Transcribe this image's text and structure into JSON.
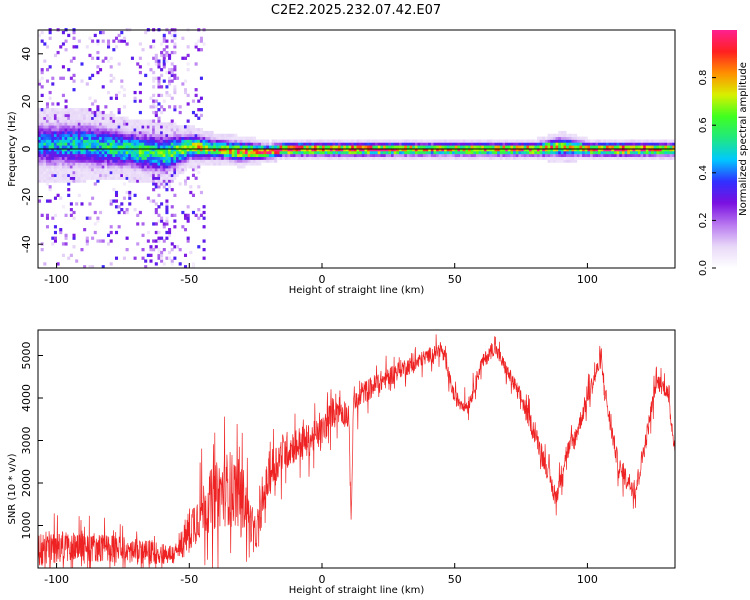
{
  "title": "C2E2.2025.232.07.42.E07",
  "colors": {
    "snr_line": "#ee2222",
    "center_line": "#000000",
    "axis": "#000000",
    "colormap": [
      "#ffffff",
      "#e8d8f8",
      "#b878f0",
      "#7a10e0",
      "#3030ff",
      "#00c8ff",
      "#20e880",
      "#40ff20",
      "#d8f000",
      "#ff9000",
      "#ff2020",
      "#ff2090"
    ]
  },
  "chart_data": [
    {
      "type": "heatmap",
      "name": "spectrogram",
      "xlabel": "Height of straight line (km)",
      "ylabel": "Frequency (Hz)",
      "xlim": [
        -107,
        133
      ],
      "ylim": [
        -50,
        50
      ],
      "xticks": [
        -100,
        -50,
        0,
        50,
        100
      ],
      "xtick_labels": [
        "-100",
        "-50",
        "0",
        "50",
        "100"
      ],
      "yticks": [
        -40,
        -20,
        0,
        20,
        40
      ],
      "ytick_labels": [
        "-40",
        "-20",
        "0",
        "20",
        "40"
      ],
      "center_line": {
        "x_start": -107,
        "x_end": 133,
        "frequency": 0
      },
      "colorbar": {
        "label": "Normalized spectral amplitude",
        "range": [
          0,
          1
        ],
        "ticks": [
          0.0,
          0.2,
          0.4,
          0.6,
          0.8
        ],
        "tick_labels": [
          "0.0",
          "0.2",
          "0.4",
          "0.6",
          "0.8"
        ]
      },
      "band_profile": {
        "x": [
          -107,
          -90,
          -75,
          -60,
          -50,
          -40,
          -30,
          -20,
          -15,
          -10,
          0,
          10,
          20,
          40,
          60,
          80,
          90,
          100,
          110,
          120,
          133
        ],
        "center_offset_hz": [
          2,
          2,
          0,
          -2,
          1,
          0,
          -1,
          -1,
          0,
          0,
          0,
          0,
          0,
          0,
          0,
          0,
          1,
          0,
          0,
          0,
          0
        ],
        "halfwidth_hz": [
          7,
          7,
          6,
          6,
          4,
          3,
          3,
          2,
          2,
          2,
          2,
          2,
          2,
          2,
          2,
          2,
          3,
          2,
          2,
          2,
          2
        ],
        "peak_amplitude": [
          0.45,
          0.5,
          0.55,
          0.6,
          0.7,
          0.75,
          0.85,
          0.95,
          1.0,
          1.0,
          0.95,
          0.9,
          0.95,
          0.8,
          0.85,
          0.9,
          0.7,
          0.85,
          1.0,
          0.95,
          0.8
        ]
      },
      "scatter_region": {
        "x_range": [
          -107,
          -45
        ],
        "frequency_range": [
          -50,
          50
        ],
        "peak_amplitude": 0.35
      }
    },
    {
      "type": "line",
      "name": "snr",
      "xlabel": "Height of straight line (km)",
      "ylabel": "SNR (10 * v/v)",
      "xlim": [
        -107,
        133
      ],
      "ylim": [
        0,
        5600
      ],
      "xticks": [
        -100,
        -50,
        0,
        50,
        100
      ],
      "xtick_labels": [
        "-100",
        "-50",
        "0",
        "50",
        "100"
      ],
      "yticks": [
        1000,
        2000,
        3000,
        4000,
        5000
      ],
      "ytick_labels": [
        "1000",
        "2000",
        "3000",
        "4000",
        "5000"
      ],
      "series": [
        {
          "name": "SNR",
          "x": [
            -107,
            -100,
            -90,
            -80,
            -70,
            -60,
            -55,
            -50,
            -45,
            -40,
            -35,
            -30,
            -25,
            -20,
            -15,
            -10,
            -5,
            0,
            5,
            10,
            11,
            12,
            13,
            15,
            20,
            25,
            30,
            35,
            40,
            45,
            50,
            55,
            60,
            65,
            70,
            75,
            80,
            85,
            88,
            92,
            95,
            100,
            105,
            108,
            112,
            115,
            118,
            122,
            126,
            130,
            133
          ],
          "values": [
            420,
            500,
            520,
            460,
            380,
            350,
            300,
            900,
            1400,
            1700,
            1900,
            1700,
            700,
            2200,
            2700,
            2900,
            3000,
            3200,
            3800,
            3600,
            1200,
            4200,
            3800,
            4100,
            4300,
            4500,
            4700,
            4800,
            5000,
            5150,
            4000,
            3800,
            4800,
            5200,
            4600,
            4000,
            3200,
            2300,
            1600,
            2700,
            3000,
            4000,
            4900,
            3600,
            2300,
            2100,
            1800,
            3000,
            4400,
            4200,
            2800
          ],
          "noise_amplitude": [
            700,
            650,
            600,
            550,
            500,
            450,
            400,
            900,
            1100,
            1300,
            1500,
            1300,
            500,
            900,
            800,
            700,
            650,
            600,
            600,
            550,
            300,
            500,
            450,
            450,
            450,
            400,
            350,
            350,
            300,
            300,
            300,
            300,
            300,
            300,
            300,
            350,
            400,
            400,
            400,
            400,
            400,
            400,
            350,
            400,
            400,
            400,
            400,
            400,
            350,
            350,
            350
          ]
        }
      ]
    }
  ]
}
